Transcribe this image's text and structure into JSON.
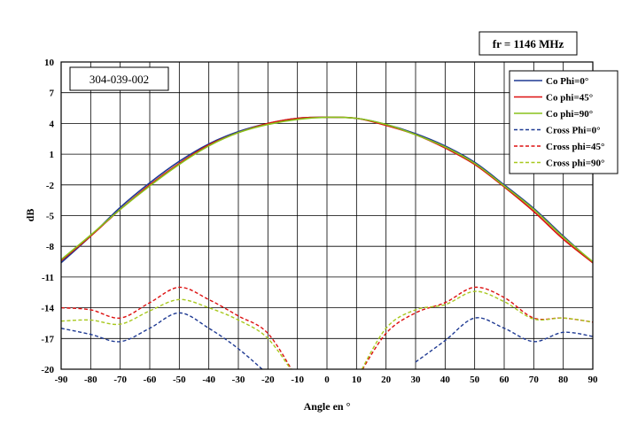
{
  "chart_data": {
    "type": "line",
    "title": "",
    "frequency_label": "fr = 1146 MHz",
    "model_label": "304-039-002",
    "xlabel": "Angle en °",
    "ylabel": "dB",
    "xlim": [
      -90,
      90
    ],
    "ylim": [
      -20,
      10
    ],
    "x_ticks": [
      -90,
      -80,
      -70,
      -60,
      -50,
      -40,
      -30,
      -20,
      -10,
      0,
      10,
      20,
      30,
      40,
      50,
      60,
      70,
      80,
      90
    ],
    "y_ticks": [
      10,
      7,
      4,
      1,
      -2,
      -5,
      -8,
      -11,
      -14,
      -17,
      -20
    ],
    "grid": true,
    "legend_position": "top-right",
    "x": [
      -90,
      -80,
      -70,
      -60,
      -50,
      -40,
      -30,
      -20,
      -10,
      0,
      10,
      20,
      30,
      40,
      50,
      60,
      70,
      80,
      90
    ],
    "series": [
      {
        "name": "Co Phi=0°",
        "color": "#1f3a93",
        "dash": false,
        "values": [
          -9.6,
          -7.0,
          -4.2,
          -1.8,
          0.3,
          2.0,
          3.2,
          4.0,
          4.5,
          4.6,
          4.5,
          3.9,
          3.0,
          1.8,
          0.2,
          -2.0,
          -4.3,
          -7.0,
          -9.6
        ]
      },
      {
        "name": "Co phi=45°",
        "color": "#dd1010",
        "dash": false,
        "values": [
          -9.4,
          -7.0,
          -4.4,
          -2.0,
          0.1,
          1.9,
          3.1,
          4.0,
          4.5,
          4.6,
          4.5,
          3.8,
          2.9,
          1.6,
          0.0,
          -2.2,
          -4.6,
          -7.3,
          -9.6
        ]
      },
      {
        "name": "Co phi=90°",
        "color": "#88c21c",
        "dash": false,
        "values": [
          -9.3,
          -6.9,
          -4.4,
          -2.1,
          0.0,
          1.8,
          3.1,
          3.9,
          4.4,
          4.6,
          4.5,
          3.9,
          2.9,
          1.7,
          0.1,
          -2.1,
          -4.4,
          -7.1,
          -9.5
        ]
      },
      {
        "name": "Cross Phi=0°",
        "color": "#1f3a93",
        "dash": true,
        "values": [
          -16.0,
          -16.6,
          -17.3,
          -16.0,
          -14.5,
          -16.0,
          -18.0,
          -20.5,
          null,
          null,
          null,
          null,
          -19.3,
          -17.2,
          -15.0,
          -16.0,
          -17.3,
          -16.4,
          -16.8
        ]
      },
      {
        "name": "Cross phi=45°",
        "color": "#dd1010",
        "dash": true,
        "values": [
          -14.0,
          -14.2,
          -15.0,
          -13.5,
          -12.0,
          -13.2,
          -14.8,
          -16.5,
          -21.0,
          null,
          -21.0,
          -16.5,
          -14.5,
          -13.5,
          -12.0,
          -13.0,
          -15.0,
          -15.0,
          -15.4
        ]
      },
      {
        "name": "Cross phi=90°",
        "color": "#a8c81e",
        "dash": true,
        "values": [
          -15.3,
          -15.2,
          -15.6,
          -14.3,
          -13.2,
          -14.0,
          -15.2,
          -17.0,
          -21.0,
          null,
          -21.0,
          -16.0,
          -14.2,
          -13.7,
          -12.4,
          -13.4,
          -15.1,
          -15.0,
          -15.4
        ]
      }
    ]
  }
}
